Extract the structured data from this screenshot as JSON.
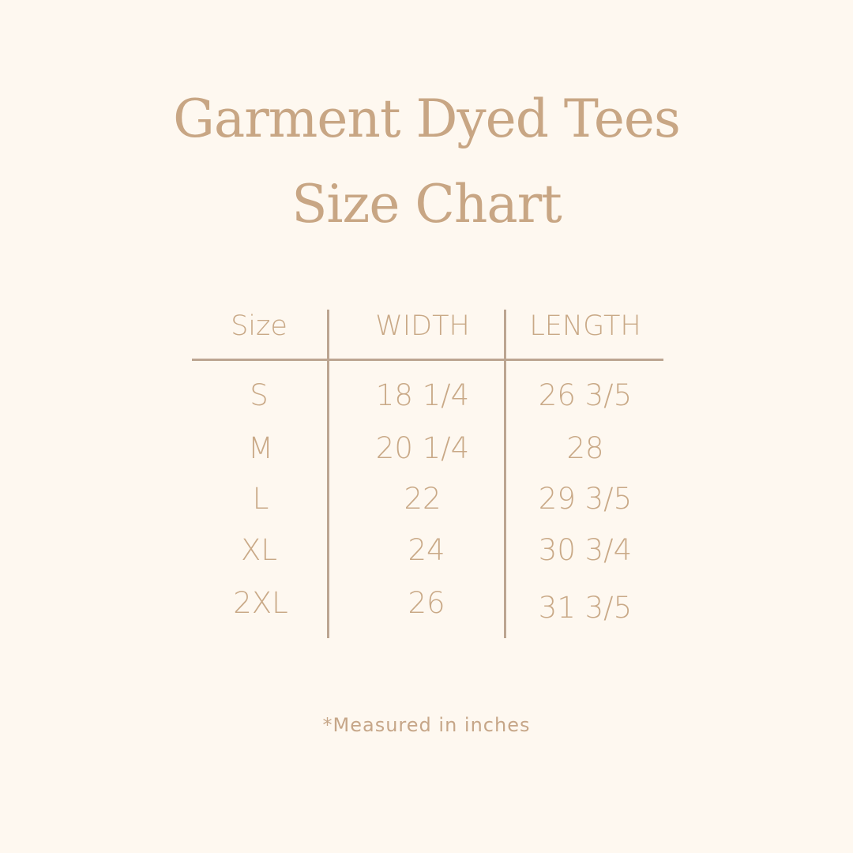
{
  "title": {
    "line1": "Garment Dyed Tees",
    "line2": "Size Chart"
  },
  "table": {
    "headers": [
      "Size",
      "WIDTH",
      "LENGTH"
    ],
    "rows": [
      [
        "S",
        "18 1/4",
        "26 3/5"
      ],
      [
        "M",
        "20 1/4",
        "28"
      ],
      [
        "L",
        "22",
        "29 3/5"
      ],
      [
        "XL",
        "24",
        "30 3/4"
      ],
      [
        "2XL",
        "26",
        "31 3/5"
      ]
    ]
  },
  "footnote": "*Measured in inches",
  "colors": {
    "background": "#fef8f0",
    "text": "#c9a987",
    "lines": "#bca591"
  }
}
